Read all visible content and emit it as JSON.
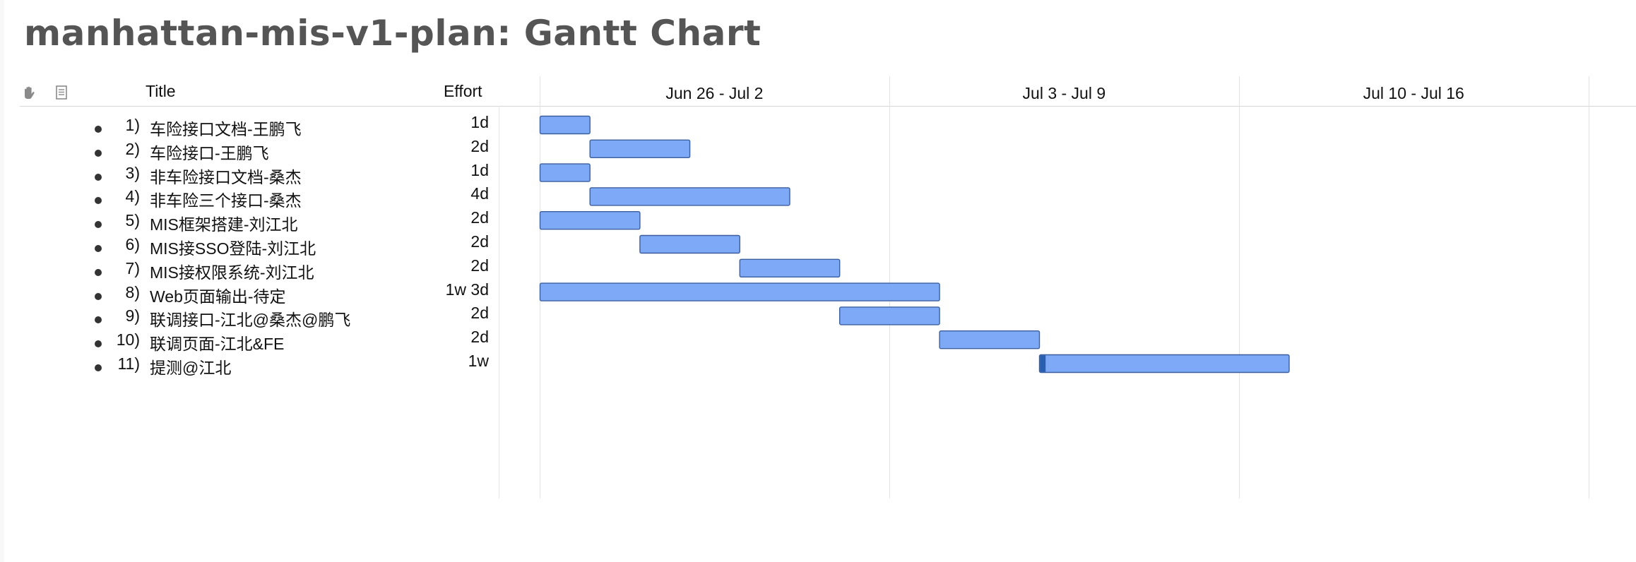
{
  "page": {
    "title": "manhattan-mis-v1-plan: Gantt Chart"
  },
  "outline_header": {
    "hand_icon": "hand-icon",
    "note_icon": "note-icon",
    "title_label": "Title",
    "effort_label": "Effort"
  },
  "tasks": [
    {
      "index": "1)",
      "name": "车险接口文档-王鹏飞",
      "effort": "1d"
    },
    {
      "index": "2)",
      "name": "车险接口-王鹏飞",
      "effort": "2d"
    },
    {
      "index": "3)",
      "name": "非车险接口文档-桑杰",
      "effort": "1d"
    },
    {
      "index": "4)",
      "name": "非车险三个接口-桑杰",
      "effort": "4d"
    },
    {
      "index": "5)",
      "name": "MIS框架搭建-刘江北",
      "effort": "2d"
    },
    {
      "index": "6)",
      "name": "MIS接SSO登陆-刘江北",
      "effort": "2d"
    },
    {
      "index": "7)",
      "name": "MIS接权限系统-刘江北",
      "effort": "2d"
    },
    {
      "index": "8)",
      "name": "Web页面输出-待定",
      "effort": "1w 3d"
    },
    {
      "index": "9)",
      "name": "联调接口-江北@桑杰@鹏飞",
      "effort": "2d"
    },
    {
      "index": "10)",
      "name": "联调页面-江北&FE",
      "effort": "2d"
    },
    {
      "index": "11)",
      "name": "提测@江北",
      "effort": "1w"
    }
  ],
  "chart_data": {
    "type": "gantt",
    "timeline_weeks": [
      "Jun 26 - Jul 2",
      "Jul 3 - Jul 9",
      "Jul 10 - Jul 16"
    ],
    "timeline_start": "Jun 26",
    "days_per_week": 7,
    "bar_color": "#7ea9f7",
    "bar_border_color": "#3b5f9e",
    "progress_color": "#2a5fb0",
    "bars": [
      {
        "task": "1) 车险接口文档-王鹏飞",
        "start": "Jun 26",
        "end": "Jun 27"
      },
      {
        "task": "2) 车险接口-王鹏飞",
        "start": "Jun 27",
        "end": "Jun 29"
      },
      {
        "task": "3) 非车险接口文档-桑杰",
        "start": "Jun 26",
        "end": "Jun 27"
      },
      {
        "task": "4) 非车险三个接口-桑杰",
        "start": "Jun 27",
        "end": "Jul 1"
      },
      {
        "task": "5) MIS框架搭建-刘江北",
        "start": "Jun 26",
        "end": "Jun 28"
      },
      {
        "task": "6) MIS接SSO登陆-刘江北",
        "start": "Jun 28",
        "end": "Jun 30"
      },
      {
        "task": "7) MIS接权限系统-刘江北",
        "start": "Jun 30",
        "end": "Jul 2"
      },
      {
        "task": "8) Web页面输出-待定",
        "start": "Jun 26",
        "end": "Jul 4"
      },
      {
        "task": "9) 联调接口-江北@桑杰@鹏飞",
        "start": "Jul 2",
        "end": "Jul 4"
      },
      {
        "task": "10) 联调页面-江北&FE",
        "start": "Jul 4",
        "end": "Jul 6"
      },
      {
        "task": "11) 提测@江北",
        "start": "Jul 6",
        "end": "Jul 11",
        "progress": 0.02
      }
    ]
  }
}
